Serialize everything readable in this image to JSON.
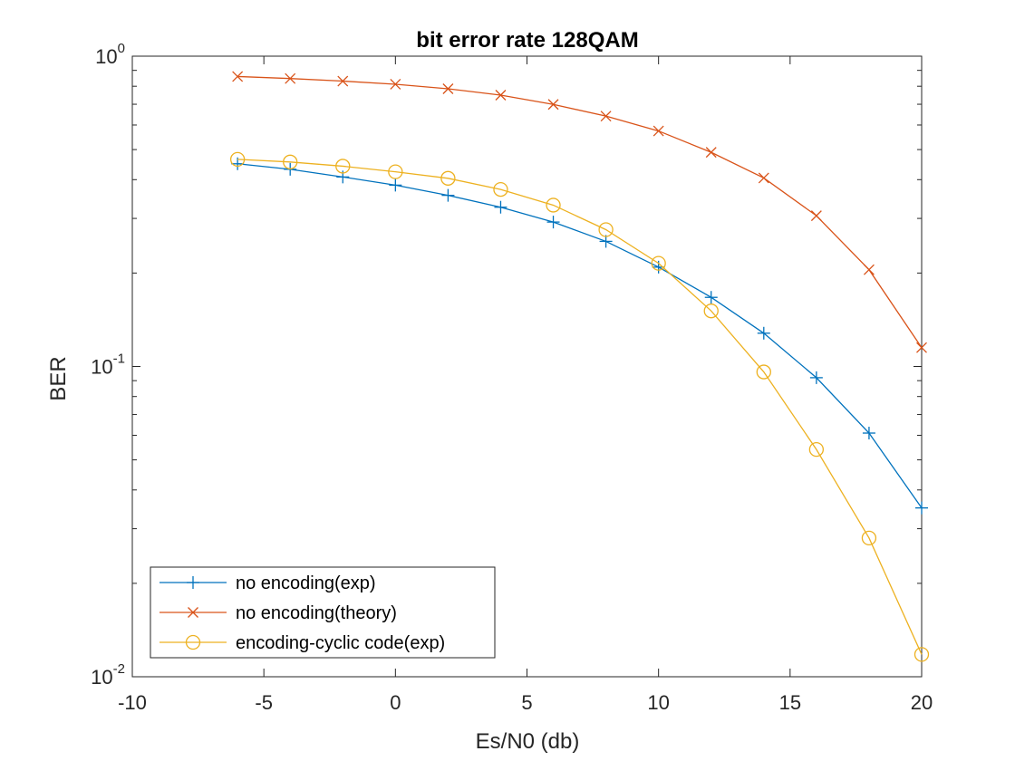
{
  "chart_data": {
    "type": "line",
    "title": "bit error rate 128QAM",
    "xlabel": "Es/N0 (db)",
    "ylabel": "BER",
    "xlim": [
      -10,
      20
    ],
    "ylim": [
      0.01,
      1
    ],
    "yscale": "log",
    "xticks": [
      -10,
      -5,
      0,
      5,
      10,
      15,
      20
    ],
    "yticks": [
      {
        "value": 0.01,
        "base": "10",
        "exp": "-2"
      },
      {
        "value": 0.1,
        "base": "10",
        "exp": "-1"
      },
      {
        "value": 1,
        "base": "10",
        "exp": "0"
      }
    ],
    "grid": false,
    "legend_position": "bottom-left",
    "x": [
      -6,
      -4,
      -2,
      0,
      2,
      4,
      6,
      8,
      10,
      12,
      14,
      16,
      18,
      20
    ],
    "series": [
      {
        "name": "no encoding(exp)",
        "color": "#0072BD",
        "marker": "plus",
        "values": [
          0.45,
          0.432,
          0.408,
          0.384,
          0.356,
          0.326,
          0.292,
          0.253,
          0.209,
          0.167,
          0.128,
          0.092,
          0.061,
          0.035
        ]
      },
      {
        "name": "no encoding(theory)",
        "color": "#D95319",
        "marker": "x",
        "values": [
          0.86,
          0.847,
          0.831,
          0.812,
          0.785,
          0.749,
          0.699,
          0.641,
          0.574,
          0.49,
          0.405,
          0.306,
          0.205,
          0.115
        ]
      },
      {
        "name": "encoding-cyclic code(exp)",
        "color": "#EDB120",
        "marker": "circle",
        "values": [
          0.465,
          0.456,
          0.442,
          0.424,
          0.404,
          0.372,
          0.331,
          0.276,
          0.215,
          0.151,
          0.096,
          0.054,
          0.028,
          0.0118
        ]
      }
    ]
  }
}
